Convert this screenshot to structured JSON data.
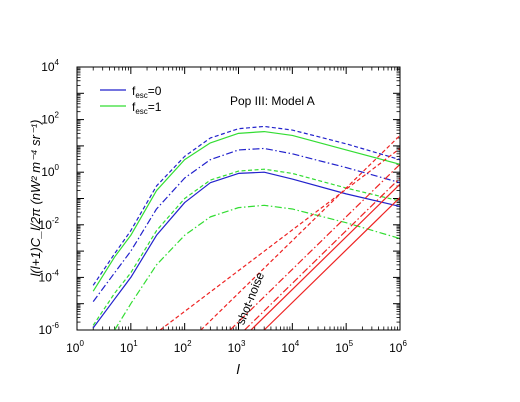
{
  "chart_data": {
    "type": "line",
    "title": "Pop III: Model A",
    "xlabel": "l",
    "ylabel": "l(l+1)C_l/2π (nW² m⁻⁴ sr⁻¹)",
    "xscale": "log",
    "yscale": "log",
    "xlim": [
      1,
      1000000
    ],
    "ylim": [
      1e-06,
      10000
    ],
    "x_ticks": [
      {
        "base": "10",
        "exp": "0"
      },
      {
        "base": "10",
        "exp": "1"
      },
      {
        "base": "10",
        "exp": "2"
      },
      {
        "base": "10",
        "exp": "3"
      },
      {
        "base": "10",
        "exp": "4"
      },
      {
        "base": "10",
        "exp": "5"
      },
      {
        "base": "10",
        "exp": "6"
      }
    ],
    "y_ticks": [
      {
        "base": "10",
        "exp": "-6"
      },
      {
        "base": "10",
        "exp": "-4"
      },
      {
        "base": "10",
        "exp": "-2"
      },
      {
        "base": "10",
        "exp": "0"
      },
      {
        "base": "10",
        "exp": "2"
      },
      {
        "base": "10",
        "exp": "4"
      }
    ],
    "legend": {
      "placement": "top-left",
      "entries": [
        {
          "prefix": "f",
          "sub": "esc",
          "suffix": "=0",
          "color": "#2222cc"
        },
        {
          "prefix": "f",
          "sub": "esc",
          "suffix": "=1",
          "color": "#33dd33"
        }
      ]
    },
    "annotations": [
      {
        "text": "shot-noise"
      }
    ],
    "colors": {
      "blue": "#2222cc",
      "green": "#33dd33",
      "red": "#ee2222"
    },
    "series": [
      {
        "color": "#2222cc",
        "dash": "solid",
        "x": [
          2,
          5,
          10,
          30,
          100,
          300,
          1000,
          3000,
          10000,
          100000,
          1000000
        ],
        "y": [
          1.2e-06,
          1.5e-05,
          0.0001,
          0.004,
          0.07,
          0.4,
          0.9,
          1.0,
          0.55,
          0.15,
          0.05
        ]
      },
      {
        "color": "#2222cc",
        "dash": "dashdot",
        "x": [
          2,
          5,
          10,
          30,
          100,
          300,
          1000,
          3000,
          10000,
          100000,
          1000000
        ],
        "y": [
          1.2e-05,
          0.00015,
          0.001,
          0.04,
          0.6,
          3,
          7,
          8,
          5,
          1.5,
          0.4
        ]
      },
      {
        "color": "#2222cc",
        "dash": "dashed",
        "x": [
          2,
          5,
          10,
          30,
          100,
          300,
          1000,
          3000,
          10000,
          100000,
          1000000
        ],
        "y": [
          5e-05,
          0.0008,
          0.006,
          0.3,
          4,
          20,
          45,
          55,
          40,
          12,
          3
        ]
      },
      {
        "color": "#33dd33",
        "dash": "solid",
        "x": [
          2,
          5,
          10,
          30,
          100,
          300,
          1000,
          3000,
          10000,
          100000,
          1000000
        ],
        "y": [
          3e-05,
          0.0006,
          0.004,
          0.2,
          3,
          13,
          30,
          35,
          25,
          7,
          2
        ]
      },
      {
        "color": "#33dd33",
        "dash": "dashed",
        "x": [
          2,
          5,
          10,
          30,
          100,
          300,
          1000,
          3000,
          10000,
          100000,
          1000000
        ],
        "y": [
          1.5e-06,
          2.5e-05,
          0.00015,
          0.006,
          0.1,
          0.5,
          1.1,
          1.3,
          0.9,
          0.25,
          0.08
        ]
      },
      {
        "color": "#33dd33",
        "dash": "dashdot",
        "x": [
          5,
          10,
          30,
          100,
          300,
          1000,
          3000,
          10000,
          100000,
          1000000
        ],
        "y": [
          1e-06,
          1e-05,
          0.0003,
          0.004,
          0.02,
          0.045,
          0.055,
          0.04,
          0.012,
          0.003
        ]
      },
      {
        "color": "#ee2222",
        "dash": "solid",
        "x": [
          1700,
          1000000
        ],
        "y": [
          1e-06,
          0.35
        ]
      },
      {
        "color": "#ee2222",
        "dash": "solid",
        "x": [
          3000,
          1000000
        ],
        "y": [
          1e-06,
          0.11
        ]
      },
      {
        "color": "#ee2222",
        "dash": "dashdot",
        "x": [
          700,
          1000000
        ],
        "y": [
          1e-06,
          2
        ]
      },
      {
        "color": "#ee2222",
        "dash": "dashdot",
        "x": [
          1300,
          1000000
        ],
        "y": [
          1e-06,
          0.6
        ]
      },
      {
        "color": "#ee2222",
        "dash": "dashed",
        "x": [
          200,
          1000000
        ],
        "y": [
          1e-06,
          25
        ]
      },
      {
        "color": "#ee2222",
        "dash": "dashed",
        "x": [
          35,
          1000000
        ],
        "y": [
          1e-06,
          8
        ]
      }
    ]
  }
}
